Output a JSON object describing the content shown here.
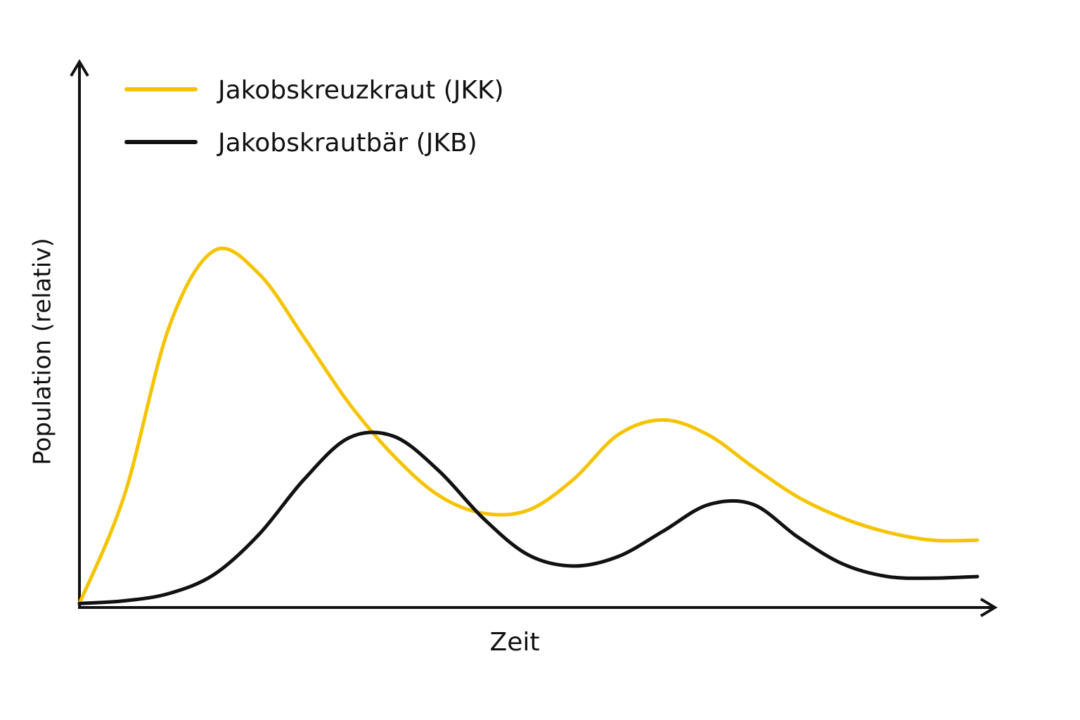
{
  "chart_data": {
    "type": "line",
    "x_label": "Zeit",
    "y_label": "Population (relativ)",
    "x": [
      0,
      5,
      10,
      15,
      20,
      25,
      30,
      35,
      40,
      45,
      50,
      55,
      60,
      65,
      70,
      75,
      80,
      85,
      90,
      95,
      100
    ],
    "series": [
      {
        "name": "Jakobskreuzkraut (JKK)",
        "color": "#f5c400",
        "values": [
          0.5,
          21,
          53,
          67.4,
          63,
          51,
          38.5,
          28.5,
          21,
          17.6,
          18.2,
          24,
          32.5,
          35.3,
          32.5,
          26.4,
          20.7,
          16.7,
          14,
          12.5,
          12.5
        ]
      },
      {
        "name": "Jakobskrautbär (JKB)",
        "color": "#111111",
        "values": [
          0.5,
          1,
          2.4,
          6,
          13.6,
          24,
          31.9,
          32.2,
          25.7,
          16.6,
          9.7,
          7.6,
          9.4,
          14.2,
          19.2,
          19.3,
          13.1,
          8,
          5.6,
          5.3,
          5.6
        ]
      }
    ],
    "xlim": [
      0,
      100
    ],
    "ylim": [
      0,
      100
    ],
    "grid": false,
    "legend": "upper left"
  }
}
